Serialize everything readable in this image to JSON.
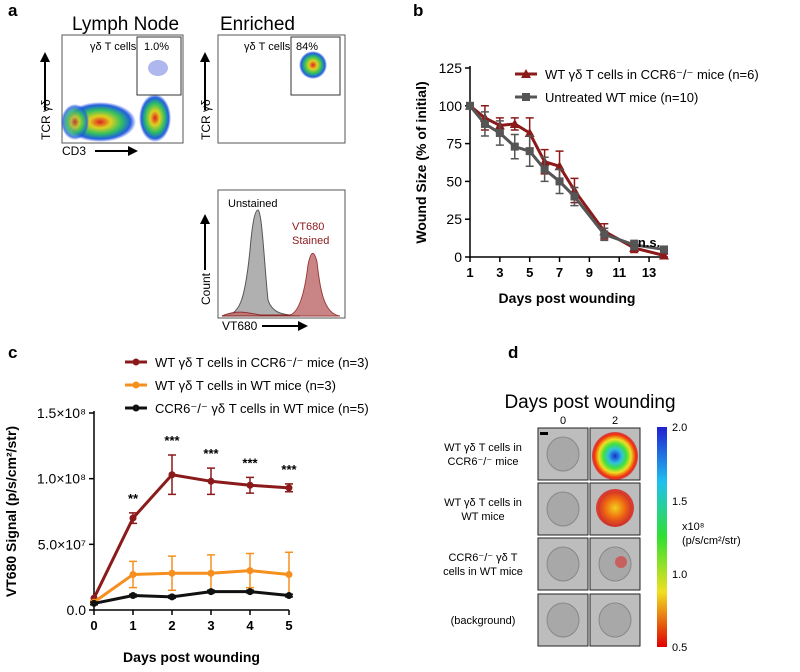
{
  "panel_labels": [
    "a",
    "b",
    "c",
    "d"
  ],
  "panel_a": {
    "lymph_node": {
      "title": "Lymph Node",
      "gate_label": "γδ T cells",
      "gate_value": "1.0%",
      "y_label": "TCR γδ",
      "x_label": "CD3"
    },
    "enriched": {
      "title": "Enriched",
      "gate_label": "γδ T cells",
      "gate_value": "84%",
      "y_label": "TCR γδ"
    },
    "histogram": {
      "unstained": "Unstained",
      "stained": [
        "VT680",
        "Stained"
      ],
      "y_label": "Count",
      "x_label": "VT680"
    }
  },
  "panel_d": {
    "title": "Days post wounding",
    "columns": [
      "0",
      "2"
    ],
    "rows": [
      [
        "WT γδ T cells in",
        "CCR6⁻/⁻ mice"
      ],
      [
        "WT γδ T cells in",
        "WT mice"
      ],
      [
        "CCR6⁻/⁻ γδ T",
        "cells in WT mice"
      ],
      [
        "(background)"
      ]
    ],
    "colorbar_labels": [
      "2.0",
      "1.5",
      "1.0",
      "0.5"
    ],
    "colorbar_unit": [
      "x10⁸",
      "(p/s/cm²/str)"
    ]
  },
  "chart_data": [
    {
      "type": "line",
      "x_label": "Days post wounding",
      "y_label": "Wound Size (% of initial)",
      "x": [
        1,
        2,
        3,
        4,
        5,
        6,
        7,
        8,
        10,
        12,
        14
      ],
      "xlim": [
        1,
        14
      ],
      "xticks": [
        1,
        3,
        5,
        7,
        9,
        11,
        13
      ],
      "ylim": [
        0,
        125
      ],
      "yticks": [
        0,
        25,
        50,
        75,
        100,
        125
      ],
      "series": [
        {
          "name": "WT γδ T cells in CCR6⁻/⁻ mice (n=6)",
          "color": "#8b1a1a",
          "marker": "triangle",
          "values": [
            100,
            92,
            87,
            88,
            82,
            63,
            60,
            44,
            17,
            6,
            1
          ],
          "errors": [
            0,
            8,
            5,
            4,
            10,
            8,
            10,
            8,
            5,
            3,
            1
          ]
        },
        {
          "name": "Untreated WT mice (n=10)",
          "color": "#555555",
          "marker": "square",
          "values": [
            100,
            88,
            82,
            73,
            70,
            58,
            50,
            40,
            15,
            8,
            5
          ],
          "errors": [
            0,
            8,
            8,
            8,
            10,
            8,
            8,
            6,
            4,
            3,
            2
          ]
        }
      ],
      "annotations": [
        {
          "text": "n.s.",
          "x": 13
        }
      ]
    },
    {
      "type": "line",
      "x_label": "Days post wounding",
      "y_label": "VT680 Signal (p/s/cm²/str)",
      "x": [
        0,
        1,
        2,
        3,
        4,
        5
      ],
      "xlim": [
        0,
        5
      ],
      "xticks": [
        0,
        1,
        2,
        3,
        4,
        5
      ],
      "ylim": [
        0,
        150000000
      ],
      "yticks": [
        {
          "value": 0,
          "label": "0.0"
        },
        {
          "value": 50000000,
          "label": "5.0×10⁷"
        },
        {
          "value": 100000000,
          "label": "1.0×10⁸"
        },
        {
          "value": 150000000,
          "label": "1.5×10⁸"
        }
      ],
      "series": [
        {
          "name": "WT γδ T cells in CCR6⁻/⁻ mice (n=3)",
          "color": "#8b1a1a",
          "marker": "circle",
          "values": [
            9000000,
            70000000,
            103000000,
            98000000,
            95000000,
            93000000
          ],
          "errors": [
            0,
            4000000,
            15000000,
            10000000,
            6000000,
            3000000
          ]
        },
        {
          "name": "WT γδ T cells in WT mice (n=3)",
          "color": "#f5901e",
          "marker": "circle",
          "values": [
            6000000,
            27000000,
            28000000,
            28000000,
            30000000,
            27000000
          ],
          "errors": [
            1000000,
            10000000,
            13000000,
            14000000,
            13000000,
            17000000
          ]
        },
        {
          "name": "CCR6⁻/⁻ γδ T cells in WT mice (n=5)",
          "color": "#111111",
          "marker": "circle",
          "values": [
            5000000,
            11000000,
            10000000,
            14000000,
            14000000,
            11000000
          ],
          "errors": [
            1000000,
            1000000,
            1000000,
            1000000,
            1000000,
            1000000
          ]
        }
      ],
      "annotations": [
        {
          "text": "**",
          "x": 1
        },
        {
          "text": "***",
          "x": 2
        },
        {
          "text": "***",
          "x": 3
        },
        {
          "text": "***",
          "x": 4
        },
        {
          "text": "***",
          "x": 5
        }
      ]
    }
  ]
}
